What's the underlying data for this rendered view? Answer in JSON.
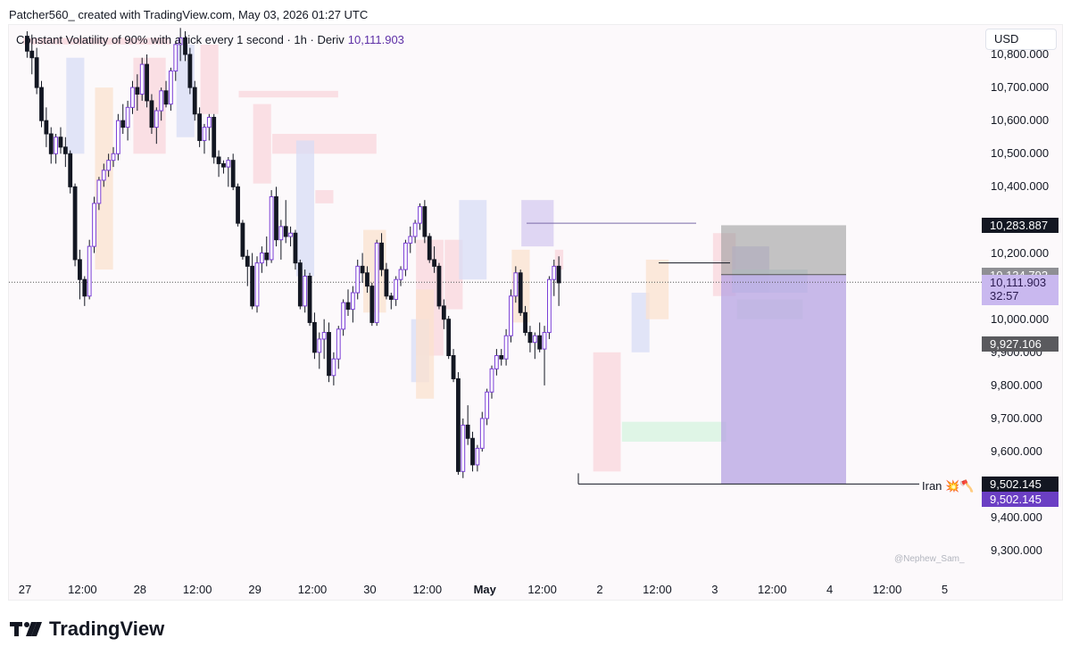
{
  "header": {
    "text": "Patcher560_ created with TradingView.com, May 03, 2026 01:27 UTC"
  },
  "legend": {
    "title": "Constant Volatility of 90% with a tick every 1 second · 1h · Deriv",
    "last_value": "10,111.903"
  },
  "currency_button": "USD",
  "watermark": "@Nephew_Sam_",
  "footer": {
    "brand": "TradingView"
  },
  "annotation": {
    "text": "Iran 💥🪓"
  },
  "colors": {
    "up_candle": "#7b3fd6",
    "down_candle": "#131722",
    "current_price_tag": "#c9b8ef",
    "level_tag_dark": "#131722",
    "level_tag_gray": "#8f8f94",
    "level_tag_dark_gray": "#5a5a5e",
    "level_tag_purple": "#6b3fc4"
  },
  "price_tags": [
    {
      "value": "10,283.887",
      "price": 10283.887,
      "style": "dark"
    },
    {
      "value": "10,134.792",
      "price": 10134.792,
      "style": "gray"
    },
    {
      "value": "10,111.903",
      "countdown": "32:57",
      "price": 10111.903,
      "style": "current"
    },
    {
      "value": "9,927.106",
      "price": 9927.106,
      "style": "darkgray"
    },
    {
      "value": "9,502.145",
      "price": 9502.145,
      "style": "dark"
    },
    {
      "value": "9,502.145",
      "price": 9502.145,
      "style": "purple"
    }
  ],
  "chart_data": {
    "type": "candlestick",
    "title": "Constant Volatility of 90% with a tick every 1 second · 1h · Deriv",
    "y_axis": {
      "ticks": [
        "10,800.000",
        "10,700.000",
        "10,600.000",
        "10,500.000",
        "10,400.000",
        "10,200.000",
        "10,000.000",
        "9,900.000",
        "9,800.000",
        "9,700.000",
        "9,600.000",
        "9,400.000",
        "9,300.000"
      ],
      "tick_values": [
        10800,
        10700,
        10600,
        10500,
        10400,
        10200,
        10000,
        9900,
        9800,
        9700,
        9600,
        9400,
        9300
      ],
      "ylim": [
        9280,
        10860
      ],
      "side": "right"
    },
    "x_axis": {
      "ticks": [
        "27",
        "12:00",
        "28",
        "12:00",
        "29",
        "12:00",
        "30",
        "12:00",
        "May",
        "12:00",
        "2",
        "12:00",
        "3",
        "12:00",
        "4",
        "12:00",
        "5"
      ],
      "tick_bars": [
        0,
        12,
        24,
        36,
        48,
        60,
        72,
        84,
        96,
        108,
        120,
        132,
        144,
        156,
        168,
        180,
        192
      ],
      "bold_ticks": [
        "May"
      ]
    },
    "timeframe": "1h",
    "last_price": 10111.903,
    "candles": [
      [
        10855,
        10870,
        10790,
        10810
      ],
      [
        10810,
        10860,
        10740,
        10790
      ],
      [
        10790,
        10820,
        10680,
        10700
      ],
      [
        10700,
        10720,
        10580,
        10600
      ],
      [
        10600,
        10640,
        10520,
        10560
      ],
      [
        10560,
        10580,
        10470,
        10500
      ],
      [
        10500,
        10560,
        10470,
        10550
      ],
      [
        10550,
        10580,
        10500,
        10520
      ],
      [
        10520,
        10550,
        10460,
        10500
      ],
      [
        10500,
        10510,
        10380,
        10400
      ],
      [
        10400,
        10410,
        10160,
        10180
      ],
      [
        10180,
        10210,
        10060,
        10120
      ],
      [
        10120,
        10130,
        10040,
        10070
      ],
      [
        10070,
        10240,
        10060,
        10220
      ],
      [
        10220,
        10370,
        10200,
        10350
      ],
      [
        10350,
        10430,
        10330,
        10420
      ],
      [
        10420,
        10470,
        10400,
        10450
      ],
      [
        10450,
        10500,
        10430,
        10480
      ],
      [
        10480,
        10520,
        10460,
        10500
      ],
      [
        10500,
        10620,
        10480,
        10600
      ],
      [
        10600,
        10650,
        10560,
        10580
      ],
      [
        10580,
        10660,
        10540,
        10640
      ],
      [
        10640,
        10720,
        10620,
        10700
      ],
      [
        10700,
        10740,
        10630,
        10680
      ],
      [
        10680,
        10790,
        10660,
        10770
      ],
      [
        10770,
        10800,
        10640,
        10660
      ],
      [
        10660,
        10680,
        10560,
        10580
      ],
      [
        10580,
        10640,
        10530,
        10630
      ],
      [
        10630,
        10700,
        10600,
        10690
      ],
      [
        10690,
        10720,
        10640,
        10650
      ],
      [
        10650,
        10760,
        10630,
        10750
      ],
      [
        10750,
        10840,
        10720,
        10830
      ],
      [
        10830,
        10880,
        10780,
        10850
      ],
      [
        10850,
        10870,
        10780,
        10800
      ],
      [
        10800,
        10820,
        10680,
        10700
      ],
      [
        10700,
        10720,
        10600,
        10620
      ],
      [
        10620,
        10640,
        10520,
        10540
      ],
      [
        10540,
        10590,
        10500,
        10580
      ],
      [
        10580,
        10620,
        10540,
        10610
      ],
      [
        10610,
        10620,
        10470,
        10490
      ],
      [
        10490,
        10510,
        10430,
        10470
      ],
      [
        10470,
        10480,
        10440,
        10460
      ],
      [
        10460,
        10490,
        10400,
        10480
      ],
      [
        10480,
        10500,
        10390,
        10400
      ],
      [
        10400,
        10410,
        10280,
        10290
      ],
      [
        10290,
        10300,
        10180,
        10190
      ],
      [
        10190,
        10210,
        10100,
        10160
      ],
      [
        10160,
        10200,
        10030,
        10040
      ],
      [
        10040,
        10190,
        10020,
        10170
      ],
      [
        10170,
        10220,
        10140,
        10200
      ],
      [
        10200,
        10250,
        10160,
        10180
      ],
      [
        10180,
        10390,
        10170,
        10370
      ],
      [
        10370,
        10400,
        10220,
        10240
      ],
      [
        10240,
        10300,
        10180,
        10280
      ],
      [
        10280,
        10360,
        10230,
        10250
      ],
      [
        10250,
        10280,
        10220,
        10260
      ],
      [
        10260,
        10270,
        10150,
        10170
      ],
      [
        10170,
        10180,
        10030,
        10040
      ],
      [
        10040,
        10150,
        10020,
        10130
      ],
      [
        10130,
        10140,
        9980,
        9990
      ],
      [
        9990,
        10020,
        9880,
        9900
      ],
      [
        9900,
        9960,
        9850,
        9940
      ],
      [
        9940,
        10000,
        9880,
        9960
      ],
      [
        9960,
        9990,
        9810,
        9830
      ],
      [
        9830,
        9900,
        9800,
        9880
      ],
      [
        9880,
        9980,
        9850,
        9970
      ],
      [
        9970,
        10060,
        9950,
        10050
      ],
      [
        10050,
        10090,
        10010,
        10030
      ],
      [
        10030,
        10100,
        9990,
        10080
      ],
      [
        10080,
        10180,
        10060,
        10160
      ],
      [
        10160,
        10200,
        10110,
        10140
      ],
      [
        10140,
        10160,
        10080,
        10100
      ],
      [
        10100,
        10110,
        9980,
        9990
      ],
      [
        9990,
        10240,
        9980,
        10230
      ],
      [
        10230,
        10260,
        10130,
        10150
      ],
      [
        10150,
        10170,
        10060,
        10070
      ],
      [
        10070,
        10080,
        10030,
        10060
      ],
      [
        10060,
        10130,
        10040,
        10120
      ],
      [
        10120,
        10160,
        10100,
        10150
      ],
      [
        10150,
        10240,
        10130,
        10230
      ],
      [
        10230,
        10280,
        10200,
        10250
      ],
      [
        10250,
        10300,
        10230,
        10290
      ],
      [
        10290,
        10350,
        10270,
        10340
      ],
      [
        10340,
        10360,
        10230,
        10250
      ],
      [
        10250,
        10260,
        10170,
        10180
      ],
      [
        10180,
        10220,
        10140,
        10160
      ],
      [
        10160,
        10170,
        10030,
        10040
      ],
      [
        10040,
        10060,
        9970,
        10000
      ],
      [
        10000,
        10010,
        9880,
        9890
      ],
      [
        9890,
        9910,
        9810,
        9820
      ],
      [
        9820,
        9840,
        9530,
        9540
      ],
      [
        9540,
        9700,
        9520,
        9680
      ],
      [
        9680,
        9740,
        9620,
        9640
      ],
      [
        9640,
        9660,
        9540,
        9560
      ],
      [
        9560,
        9620,
        9540,
        9610
      ],
      [
        9610,
        9720,
        9600,
        9700
      ],
      [
        9700,
        9790,
        9680,
        9780
      ],
      [
        9780,
        9860,
        9760,
        9850
      ],
      [
        9850,
        9910,
        9830,
        9890
      ],
      [
        9890,
        9910,
        9860,
        9880
      ],
      [
        9880,
        9970,
        9860,
        9950
      ],
      [
        9950,
        10090,
        9930,
        10070
      ],
      [
        10070,
        10160,
        10050,
        10140
      ],
      [
        10140,
        10150,
        10010,
        10020
      ],
      [
        10020,
        10040,
        9950,
        9960
      ],
      [
        9960,
        9980,
        9900,
        9930
      ],
      [
        9930,
        9960,
        9880,
        9950
      ],
      [
        9950,
        9990,
        9900,
        9910
      ],
      [
        9910,
        9980,
        9800,
        9960
      ],
      [
        9960,
        10130,
        9940,
        10120
      ],
      [
        10120,
        10180,
        10070,
        10160
      ],
      [
        10160,
        10190,
        10040,
        10110
      ]
    ],
    "zones": [
      {
        "type": "bearish",
        "top": 10850,
        "bottom": 10830
      },
      {
        "type": "bullish",
        "top": 10790,
        "bottom": 10500
      },
      {
        "type": "neutral",
        "top": 10700,
        "bottom": 10150
      },
      {
        "type": "bearish",
        "top": 10790,
        "bottom": 10500
      },
      {
        "type": "bullish",
        "top": 10830,
        "bottom": 10550
      },
      {
        "type": "bearish",
        "top": 10830,
        "bottom": 10620
      },
      {
        "type": "bearish",
        "top": 10690,
        "bottom": 10670
      },
      {
        "type": "bearish",
        "top": 10650,
        "bottom": 10410
      },
      {
        "type": "bearish",
        "top": 10560,
        "bottom": 10500
      },
      {
        "type": "bullish",
        "top": 10540,
        "bottom": 10130
      },
      {
        "type": "bearish",
        "top": 10390,
        "bottom": 10350
      },
      {
        "type": "neutral",
        "top": 10270,
        "bottom": 10020
      },
      {
        "type": "bearish",
        "top": 10240,
        "bottom": 9890
      },
      {
        "type": "bullish",
        "top": 10000,
        "bottom": 9810
      },
      {
        "type": "neutral",
        "top": 10090,
        "bottom": 9760
      },
      {
        "type": "bearish",
        "top": 10240,
        "bottom": 10030
      },
      {
        "type": "bullish",
        "top": 10360,
        "bottom": 10120
      },
      {
        "type": "purple",
        "top": 10360,
        "bottom": 10220
      },
      {
        "type": "bearish",
        "top": 10210,
        "bottom": 10150
      },
      {
        "type": "neutral",
        "top": 10210,
        "bottom": 9990
      },
      {
        "type": "bearish",
        "top": 9900,
        "bottom": 9540
      },
      {
        "type": "bullish_green",
        "top": 9690,
        "bottom": 9630
      },
      {
        "type": "bullish",
        "top": 10080,
        "bottom": 9900
      },
      {
        "type": "neutral",
        "top": 10180,
        "bottom": 10000
      },
      {
        "type": "bearish",
        "top": 10260,
        "bottom": 10070
      },
      {
        "type": "purple",
        "top": 10220,
        "bottom": 10080
      },
      {
        "type": "teal",
        "top": 10150,
        "bottom": 10080
      },
      {
        "type": "green",
        "top": 10060,
        "bottom": 10000
      }
    ],
    "position_tool": {
      "direction": "long",
      "entry": 10134.792,
      "target": 10283.887,
      "stop": 9502.145
    },
    "levels": [
      {
        "label": "Iran 💥🪓",
        "value": 9502.145
      }
    ]
  }
}
